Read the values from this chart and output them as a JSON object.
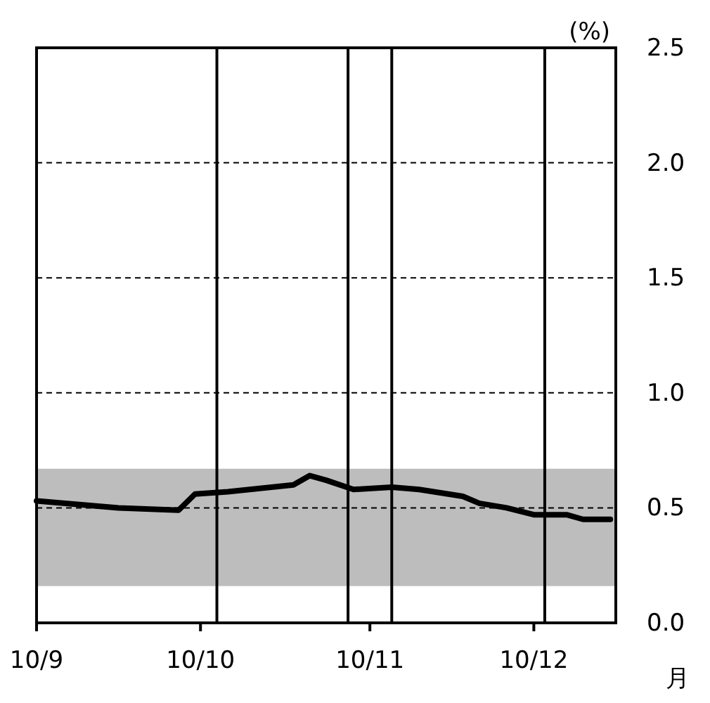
{
  "chart_data": {
    "type": "line",
    "xlabel": "月",
    "ylabel": "(%)",
    "x": [
      "2010-09-01",
      "2010-09-16",
      "2010-09-27",
      "2010-09-30",
      "2010-10-06",
      "2010-10-10",
      "2010-10-18",
      "2010-10-21",
      "2010-10-24",
      "2010-10-29",
      "2010-11-05",
      "2010-11-10",
      "2010-11-18",
      "2010-11-21",
      "2010-11-26",
      "2010-12-01",
      "2010-12-07",
      "2010-12-10",
      "2010-12-15"
    ],
    "series": [
      {
        "color": "#000000",
        "values": [
          0.53,
          0.5,
          0.49,
          0.56,
          0.57,
          0.58,
          0.6,
          0.64,
          0.62,
          0.58,
          0.59,
          0.58,
          0.55,
          0.52,
          0.5,
          0.47,
          0.47,
          0.45,
          0.45
        ]
      }
    ],
    "xlim": [
      "2010-09-01",
      "2010-12-16"
    ],
    "xticks": [
      {
        "value": "2010-09-01",
        "label": "10/9"
      },
      {
        "value": "2010-10-01",
        "label": "10/10"
      },
      {
        "value": "2010-11-01",
        "label": "10/11"
      },
      {
        "value": "2010-12-01",
        "label": "10/12"
      }
    ],
    "ylim": [
      0,
      2.5
    ],
    "yticks": [
      {
        "value": 0,
        "label": "0.0"
      },
      {
        "value": 0.5,
        "label": "0.5"
      },
      {
        "value": 1,
        "label": "1.0"
      },
      {
        "value": 1.5,
        "label": "1.5"
      },
      {
        "value": 2,
        "label": "2.0"
      },
      {
        "value": 2.5,
        "label": "2.5"
      }
    ],
    "grid": "y",
    "line_style": "solid",
    "marker": "none",
    "bands": [
      {
        "axis": "y",
        "from": 0.16,
        "to": 0.67,
        "color": "#bdbdbd"
      }
    ],
    "ref_lines": [
      {
        "axis": "x",
        "value": "2010-10-04",
        "color": "#000000"
      },
      {
        "axis": "x",
        "value": "2010-10-28",
        "color": "#000000"
      },
      {
        "axis": "x",
        "value": "2010-11-05",
        "color": "#000000"
      },
      {
        "axis": "x",
        "value": "2010-12-03",
        "color": "#000000"
      }
    ]
  }
}
